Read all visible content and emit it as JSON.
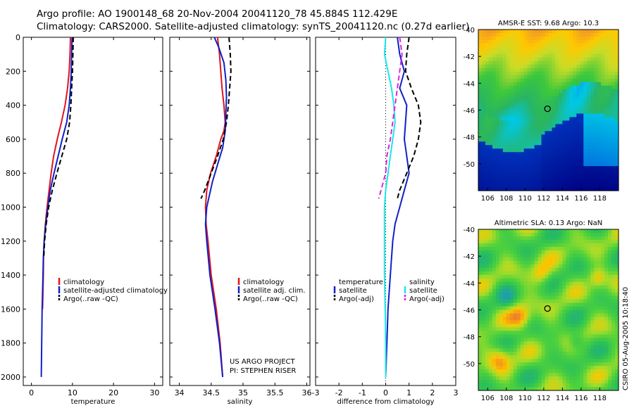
{
  "header": {
    "line1": "Argo profile: AO 1900148_68 20-Nov-2004 20041120_78 45.884S 112.429E",
    "line2": "Climatology: CARS2000. Satellite-adjusted climatology: synTS_20041120.nc (0.27d earlier)"
  },
  "side_text": "CSIRO 05-Aug-2005 10:18:40",
  "credit": {
    "line1": "US ARGO PROJECT",
    "line2": "PI: STEPHEN RISER"
  },
  "colors": {
    "red": "#e0141e",
    "blue": "#1020c8",
    "black": "#000000",
    "cyan": "#18e8e8",
    "magenta": "#e020e0"
  },
  "chart_data": [
    {
      "type": "line",
      "xlabel": "temperature",
      "ylabel": "",
      "xlim": [
        -2,
        32
      ],
      "ylim": [
        2050,
        0
      ],
      "xticks": [
        0,
        10,
        20,
        30
      ],
      "yticks": [
        0,
        200,
        400,
        600,
        800,
        1000,
        1200,
        1400,
        1600,
        1800,
        2000
      ],
      "legend": {
        "placement": "bottom-right",
        "entries": [
          "climatology",
          "satellite-adjusted climatology",
          "Argo(..raw -QC)"
        ]
      },
      "series": [
        {
          "name": "climatology",
          "color": "red",
          "style": "solid",
          "points": [
            [
              9.5,
              0
            ],
            [
              9.4,
              100
            ],
            [
              9.2,
              200
            ],
            [
              8.8,
              300
            ],
            [
              8.2,
              400
            ],
            [
              7.3,
              500
            ],
            [
              6.3,
              600
            ],
            [
              5.4,
              700
            ],
            [
              4.8,
              800
            ],
            [
              4.3,
              900
            ],
            [
              3.8,
              1000
            ],
            [
              3.4,
              1100
            ],
            [
              3.1,
              1200
            ],
            [
              2.95,
              1300
            ],
            [
              2.9,
              1400
            ],
            [
              2.8,
              1500
            ],
            [
              2.7,
              1600
            ]
          ]
        },
        {
          "name": "satellite-adjusted climatology",
          "color": "blue",
          "style": "solid",
          "points": [
            [
              9.9,
              0
            ],
            [
              9.8,
              100
            ],
            [
              9.7,
              200
            ],
            [
              9.5,
              300
            ],
            [
              9.2,
              400
            ],
            [
              8.6,
              500
            ],
            [
              7.5,
              600
            ],
            [
              6.5,
              700
            ],
            [
              5.5,
              800
            ],
            [
              4.6,
              900
            ],
            [
              4.0,
              1000
            ],
            [
              3.5,
              1100
            ],
            [
              3.1,
              1200
            ],
            [
              2.9,
              1300
            ],
            [
              2.8,
              1400
            ],
            [
              2.7,
              1500
            ],
            [
              2.6,
              1600
            ],
            [
              2.55,
              1700
            ],
            [
              2.5,
              1800
            ],
            [
              2.45,
              1900
            ],
            [
              2.4,
              2000
            ]
          ]
        },
        {
          "name": "Argo(..raw -QC)",
          "color": "black",
          "style": "dashed",
          "points": [
            [
              10.2,
              0
            ],
            [
              10.1,
              100
            ],
            [
              10.0,
              200
            ],
            [
              9.8,
              300
            ],
            [
              9.6,
              400
            ],
            [
              9.3,
              500
            ],
            [
              8.6,
              600
            ],
            [
              7.4,
              700
            ],
            [
              6.2,
              800
            ],
            [
              5.1,
              900
            ],
            [
              4.2,
              1000
            ],
            [
              3.6,
              1100
            ],
            [
              3.2,
              1200
            ],
            [
              3.0,
              1300
            ]
          ]
        }
      ]
    },
    {
      "type": "line",
      "xlabel": "salinity",
      "ylabel": "",
      "xlim": [
        33.85,
        36.05
      ],
      "ylim": [
        2050,
        0
      ],
      "xticks": [
        34,
        34.5,
        35,
        35.5,
        36
      ],
      "legend": {
        "placement": "bottom-right",
        "entries": [
          "climatology",
          "satellite adj. clim.",
          "Argo(..raw -QC)"
        ]
      },
      "series": [
        {
          "name": "climatology",
          "color": "red",
          "style": "solid",
          "points": [
            [
              34.6,
              0
            ],
            [
              34.63,
              100
            ],
            [
              34.65,
              200
            ],
            [
              34.67,
              300
            ],
            [
              34.7,
              400
            ],
            [
              34.72,
              500
            ],
            [
              34.7,
              550
            ],
            [
              34.65,
              600
            ],
            [
              34.58,
              700
            ],
            [
              34.49,
              800
            ],
            [
              34.43,
              900
            ],
            [
              34.41,
              1000
            ],
            [
              34.42,
              1100
            ],
            [
              34.45,
              1200
            ],
            [
              34.5,
              1400
            ],
            [
              34.58,
              1600
            ],
            [
              34.64,
              1800
            ],
            [
              34.68,
              2000
            ]
          ]
        },
        {
          "name": "satellite adj. clim.",
          "color": "blue",
          "style": "solid",
          "points": [
            [
              34.55,
              0
            ],
            [
              34.62,
              60
            ],
            [
              34.7,
              150
            ],
            [
              34.73,
              250
            ],
            [
              34.74,
              350
            ],
            [
              34.73,
              450
            ],
            [
              34.72,
              550
            ],
            [
              34.68,
              650
            ],
            [
              34.6,
              750
            ],
            [
              34.52,
              850
            ],
            [
              34.43,
              1000
            ],
            [
              34.41,
              1100
            ],
            [
              34.43,
              1200
            ],
            [
              34.48,
              1400
            ],
            [
              34.56,
              1600
            ],
            [
              34.63,
              1800
            ],
            [
              34.68,
              2000
            ]
          ]
        },
        {
          "name": "Argo(..raw -QC)",
          "color": "black",
          "style": "dashed",
          "points": [
            [
              34.78,
              0
            ],
            [
              34.8,
              100
            ],
            [
              34.81,
              200
            ],
            [
              34.79,
              300
            ],
            [
              34.77,
              400
            ],
            [
              34.74,
              500
            ],
            [
              34.69,
              600
            ],
            [
              34.6,
              700
            ],
            [
              34.5,
              800
            ],
            [
              34.4,
              900
            ],
            [
              34.34,
              950
            ]
          ]
        }
      ]
    },
    {
      "type": "line",
      "xlabel": "difference from climatology",
      "ylabel": "",
      "xlim": [
        -3,
        3
      ],
      "ylim": [
        2050,
        0
      ],
      "xticks": [
        -3,
        -2,
        -1,
        0,
        1,
        2,
        3
      ],
      "legend": {
        "placement": "bottom",
        "entries": [
          "temperature",
          "satellite",
          "Argo(-adj)",
          "salinity",
          "satellite",
          "Argo(-adj)"
        ]
      },
      "series": [
        {
          "name": "temperature satellite",
          "color": "blue",
          "style": "solid",
          "points": [
            [
              0.5,
              0
            ],
            [
              0.6,
              100
            ],
            [
              0.8,
              200
            ],
            [
              0.6,
              300
            ],
            [
              0.9,
              400
            ],
            [
              0.85,
              500
            ],
            [
              0.8,
              600
            ],
            [
              0.9,
              700
            ],
            [
              1.0,
              800
            ],
            [
              0.8,
              900
            ],
            [
              0.6,
              1000
            ],
            [
              0.4,
              1100
            ],
            [
              0.3,
              1200
            ],
            [
              0.2,
              1400
            ],
            [
              0.1,
              1600
            ],
            [
              0.05,
              1800
            ],
            [
              0.0,
              2000
            ]
          ]
        },
        {
          "name": "salinity satellite",
          "color": "cyan",
          "style": "solid",
          "points": [
            [
              0.0,
              0
            ],
            [
              -0.05,
              100
            ],
            [
              0.1,
              200
            ],
            [
              0.25,
              300
            ],
            [
              0.35,
              400
            ],
            [
              0.4,
              500
            ],
            [
              0.3,
              600
            ],
            [
              0.2,
              700
            ],
            [
              0.1,
              800
            ],
            [
              0.0,
              900
            ],
            [
              -0.05,
              1000
            ],
            [
              -0.05,
              1200
            ],
            [
              -0.05,
              1400
            ],
            [
              -0.02,
              1600
            ],
            [
              0.0,
              1800
            ],
            [
              0.0,
              2000
            ]
          ]
        },
        {
          "name": "temperature Argo(-adj)",
          "color": "black",
          "style": "dashed",
          "points": [
            [
              1.0,
              0
            ],
            [
              0.9,
              100
            ],
            [
              0.85,
              200
            ],
            [
              1.1,
              300
            ],
            [
              1.4,
              400
            ],
            [
              1.5,
              500
            ],
            [
              1.4,
              600
            ],
            [
              1.2,
              700
            ],
            [
              0.9,
              800
            ],
            [
              0.6,
              900
            ],
            [
              0.5,
              950
            ]
          ]
        },
        {
          "name": "salinity Argo(-adj)",
          "color": "magenta",
          "style": "dashed",
          "points": [
            [
              0.6,
              0
            ],
            [
              0.7,
              100
            ],
            [
              0.6,
              200
            ],
            [
              0.5,
              300
            ],
            [
              0.4,
              400
            ],
            [
              0.3,
              500
            ],
            [
              0.2,
              600
            ],
            [
              0.05,
              700
            ],
            [
              0.0,
              800
            ],
            [
              -0.2,
              900
            ],
            [
              -0.3,
              950
            ]
          ]
        }
      ]
    },
    {
      "type": "heatmap",
      "title": "AMSR-E SST: 9.68 Argo: 10.3",
      "xlim": [
        105,
        120
      ],
      "ylim": [
        -52,
        -40
      ],
      "xticks": [
        106,
        108,
        110,
        112,
        114,
        116,
        118
      ],
      "yticks": [
        -40,
        -42,
        -44,
        -46,
        -48,
        -50
      ],
      "marker": {
        "x": 112.4,
        "y": -45.9
      }
    },
    {
      "type": "heatmap",
      "title": "Altimetric SLA: 0.13 Argo: NaN",
      "xlim": [
        105,
        120
      ],
      "ylim": [
        -52,
        -40
      ],
      "xticks": [
        106,
        108,
        110,
        112,
        114,
        116,
        118
      ],
      "yticks": [
        -40,
        -42,
        -44,
        -46,
        -48,
        -50
      ],
      "marker": {
        "x": 112.4,
        "y": -45.9
      }
    }
  ]
}
